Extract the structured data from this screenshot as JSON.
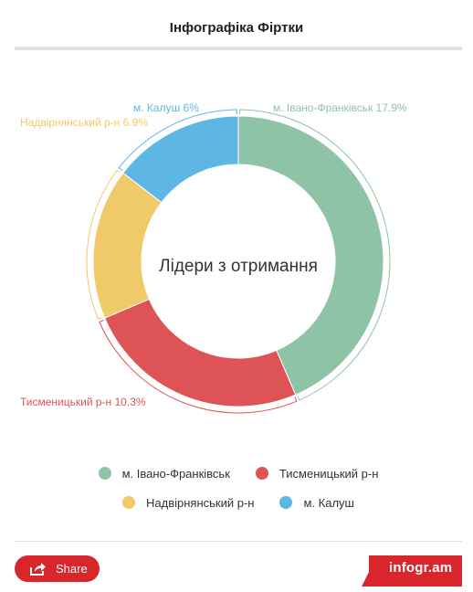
{
  "header": {
    "title": "Інфографіка Фіртки"
  },
  "chart_data": {
    "type": "pie",
    "variant": "donut",
    "center_label": "Лідери з отримання",
    "series": [
      {
        "name": "м. Івано-Франківськ",
        "value": 17.9,
        "label": "м. Івано-Франківськ 17.9%",
        "color": "#8fc3a5"
      },
      {
        "name": "Тисменицький р-н",
        "value": 10.3,
        "label": "Тисменицький р-н 10.3%",
        "color": "#de5356"
      },
      {
        "name": "Надвірнянський р-н",
        "value": 6.9,
        "label": "Надвірнянський р-н 6.9%",
        "color": "#f0ca68"
      },
      {
        "name": "м. Калуш",
        "value": 6,
        "label": "м. Калуш 6%",
        "color": "#5db6e4"
      }
    ],
    "legend": {
      "position": "bottom",
      "items": [
        "м. Івано-Франківськ",
        "Тисменицький р-н",
        "Надвірнянський р-н",
        "м. Калуш"
      ]
    }
  },
  "footer": {
    "share_label": "Share",
    "share_icon": "share-icon",
    "brand": "infogr.am",
    "brand_color": "#d9262c"
  }
}
